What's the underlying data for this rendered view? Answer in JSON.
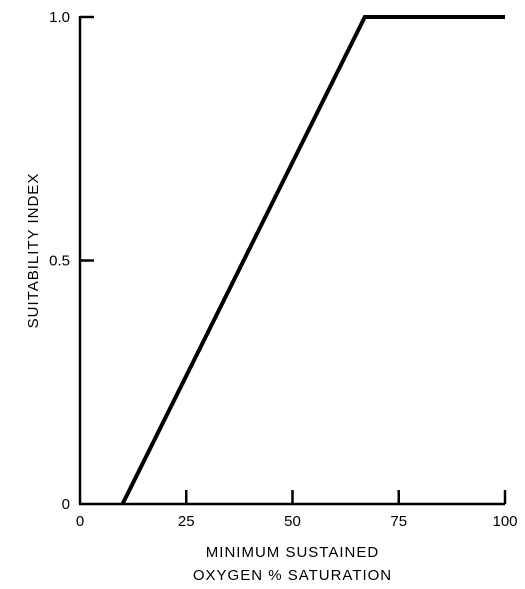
{
  "chart_data": {
    "type": "line",
    "title": "",
    "xlabel_lines": [
      "MINIMUM SUSTAINED",
      "OXYGEN % SATURATION"
    ],
    "ylabel": "SUITABILITY INDEX",
    "xlim": [
      0,
      100
    ],
    "ylim": [
      0,
      1.0
    ],
    "x_ticks": [
      0,
      25,
      50,
      75,
      100
    ],
    "x_tick_labels": [
      "0",
      "25",
      "50",
      "75",
      "100"
    ],
    "y_ticks": [
      0,
      0.5,
      1.0
    ],
    "y_tick_labels": [
      "0",
      "0.5",
      "1.0"
    ],
    "grid": false,
    "series": [
      {
        "x": [
          10,
          67,
          100
        ],
        "y": [
          0,
          1.0,
          1.0
        ]
      }
    ]
  }
}
